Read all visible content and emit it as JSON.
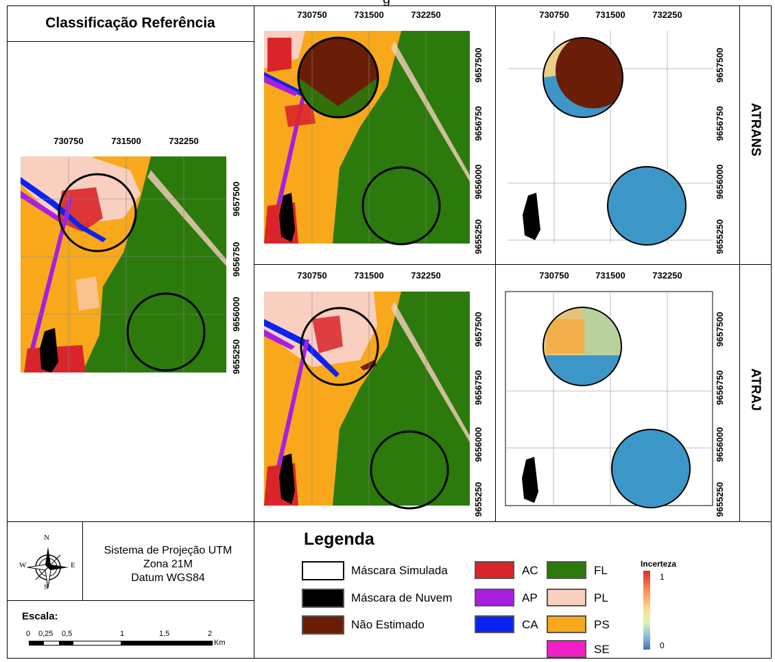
{
  "header": {
    "top_cut_text": "g"
  },
  "reference_panel": {
    "title": "Classificação Referência"
  },
  "x_ticks": [
    "730750",
    "731500",
    "732250"
  ],
  "y_ticks": [
    "9657500",
    "9656750",
    "9656000",
    "9655250"
  ],
  "row_labels": [
    "ATRANS",
    "ATRAJ"
  ],
  "projection": {
    "line1": "Sistema de Projeção UTM",
    "line2": "Zona 21M",
    "line3": "Datum WGS84"
  },
  "compass": {
    "n": "N",
    "s": "S",
    "e": "E",
    "w": "W"
  },
  "scale": {
    "title": "Escala:",
    "labels": [
      "0",
      "0,25",
      "0,5",
      "1",
      "1,5",
      "2"
    ],
    "unit": "Km"
  },
  "legend": {
    "title": "Legenda",
    "masks": [
      {
        "label": "Máscara Simulada",
        "color": "#ffffff"
      },
      {
        "label": "Máscara de Nuvem",
        "color": "#000000"
      },
      {
        "label": "Não Estimado",
        "color": "#6b1e07"
      }
    ],
    "classes_a": [
      {
        "label": "AC",
        "color": "#d9252a"
      },
      {
        "label": "AP",
        "color": "#a81fe0"
      },
      {
        "label": "CA",
        "color": "#0a23f0"
      }
    ],
    "classes_b": [
      {
        "label": "FL",
        "color": "#2b7a0b"
      },
      {
        "label": "PL",
        "color": "#f9cfc0"
      },
      {
        "label": "PS",
        "color": "#f8a81a"
      },
      {
        "label": "SE",
        "color": "#f21fc7"
      }
    ],
    "uncertainty": {
      "title": "Incerteza",
      "max": "1",
      "min": "0"
    }
  },
  "colors": {
    "forest": "#2b7a0b",
    "pasture": "#f8a81a",
    "pink": "#f9cfc0",
    "red": "#d9252a",
    "purple": "#a81fe0",
    "blue": "#0a23f0",
    "brown": "#6b1e07",
    "uncert_low": "#3d96c8"
  }
}
